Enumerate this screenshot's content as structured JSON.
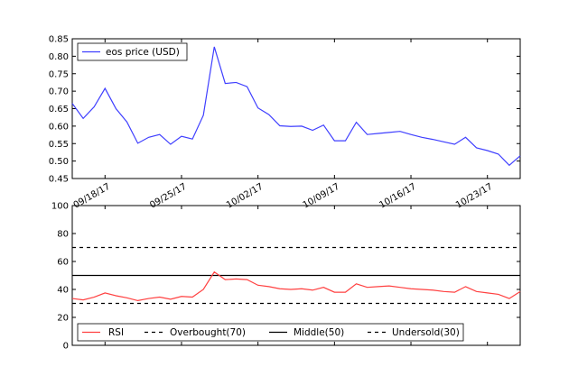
{
  "chart_data": [
    {
      "type": "line",
      "ylim": [
        0.45,
        0.85
      ],
      "yticks": [
        "0.45",
        "0.50",
        "0.55",
        "0.60",
        "0.65",
        "0.70",
        "0.75",
        "0.80",
        "0.85"
      ],
      "xlim": [
        "2017-09-15",
        "2017-10-26"
      ],
      "xticks": [
        {
          "label": "09/18/17",
          "date": "2017-09-18"
        },
        {
          "label": "09/25/17",
          "date": "2017-09-25"
        },
        {
          "label": "10/02/17",
          "date": "2017-10-02"
        },
        {
          "label": "10/09/17",
          "date": "2017-10-09"
        },
        {
          "label": "10/16/17",
          "date": "2017-10-16"
        },
        {
          "label": "10/23/17",
          "date": "2017-10-23"
        }
      ],
      "legend_position": "top-left",
      "grid": false,
      "series": [
        {
          "name": "eos price (USD)",
          "color": "#3f3fff",
          "x": [
            "2017-09-15",
            "2017-09-16",
            "2017-09-17",
            "2017-09-18",
            "2017-09-19",
            "2017-09-20",
            "2017-09-21",
            "2017-09-22",
            "2017-09-23",
            "2017-09-24",
            "2017-09-25",
            "2017-09-26",
            "2017-09-27",
            "2017-09-28",
            "2017-09-29",
            "2017-09-30",
            "2017-10-01",
            "2017-10-02",
            "2017-10-03",
            "2017-10-04",
            "2017-10-05",
            "2017-10-06",
            "2017-10-07",
            "2017-10-08",
            "2017-10-09",
            "2017-10-10",
            "2017-10-11",
            "2017-10-12",
            "2017-10-13",
            "2017-10-14",
            "2017-10-15",
            "2017-10-16",
            "2017-10-17",
            "2017-10-18",
            "2017-10-19",
            "2017-10-20",
            "2017-10-21",
            "2017-10-22",
            "2017-10-23",
            "2017-10-24",
            "2017-10-25",
            "2017-10-26"
          ],
          "values": [
            0.665,
            0.622,
            0.655,
            0.708,
            0.65,
            0.612,
            0.551,
            0.568,
            0.576,
            0.548,
            0.571,
            0.563,
            0.631,
            0.827,
            0.722,
            0.725,
            0.713,
            0.652,
            0.633,
            0.601,
            0.599,
            0.6,
            0.588,
            0.603,
            0.558,
            0.558,
            0.611,
            0.576,
            0.579,
            0.582,
            0.585,
            0.576,
            0.568,
            0.562,
            0.555,
            0.548,
            0.568,
            0.538,
            0.53,
            0.52,
            0.488,
            0.515
          ]
        }
      ]
    },
    {
      "type": "line",
      "ylim": [
        0,
        100
      ],
      "yticks": [
        "0",
        "20",
        "40",
        "60",
        "80",
        "100"
      ],
      "xlim": [
        "2017-09-15",
        "2017-10-26"
      ],
      "legend_position": "bottom",
      "grid": false,
      "series": [
        {
          "name": "RSI",
          "color": "#ff4040",
          "style": "solid",
          "values": [
            33.5,
            32.5,
            34.5,
            37.5,
            35.5,
            34.0,
            32.0,
            33.5,
            34.5,
            33.0,
            35.0,
            34.5,
            40.0,
            52.5,
            47.0,
            47.5,
            47.0,
            43.0,
            42.0,
            40.5,
            40.0,
            40.5,
            39.5,
            41.5,
            38.0,
            38.0,
            44.0,
            41.5,
            42.0,
            42.5,
            41.5,
            40.5,
            40.0,
            39.5,
            38.5,
            38.0,
            42.0,
            38.5,
            37.5,
            36.5,
            33.5,
            38.5
          ]
        },
        {
          "name": "Overbought(70)",
          "color": "#000000",
          "style": "dashed",
          "level": 70
        },
        {
          "name": "Middle(50)",
          "color": "#000000",
          "style": "solid",
          "level": 50
        },
        {
          "name": "Undersold(30)",
          "color": "#000000",
          "style": "dashed",
          "level": 30
        }
      ]
    }
  ]
}
